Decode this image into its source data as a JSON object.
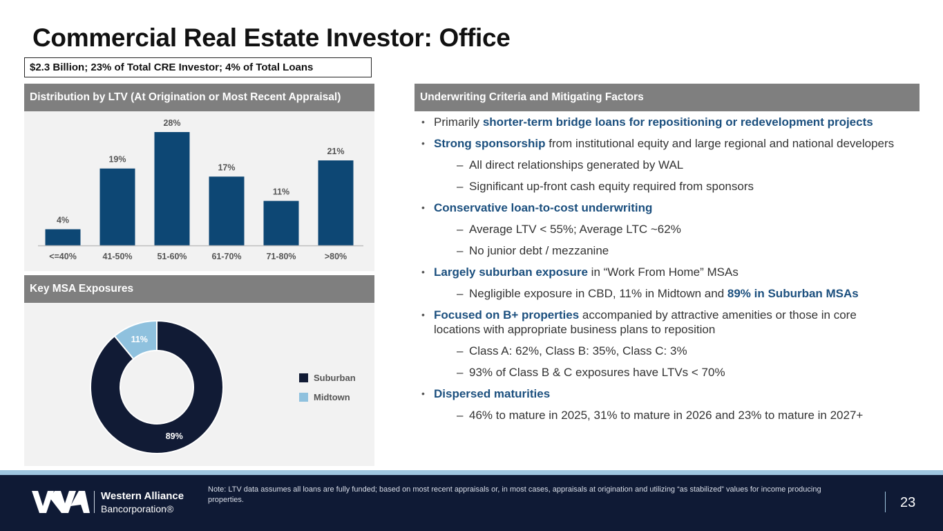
{
  "title": "Commercial Real Estate Investor: Office",
  "summary": "$2.3 Billion; 23% of Total CRE Investor; 4% of Total Loans",
  "ltv_panel": {
    "header": "Distribution by LTV (At Origination or Most Recent Appraisal)"
  },
  "msa_panel": {
    "header": "Key MSA Exposures"
  },
  "underwriting": {
    "header": "Underwriting Criteria and Mitigating Factors",
    "b1_pre": "Primarily ",
    "b1_hl": "shorter-term bridge loans for repositioning or redevelopment projects",
    "b2_hl": "Strong sponsorship",
    "b2_post": " from institutional equity and large regional and national developers",
    "b2_s1": "All direct relationships generated by WAL",
    "b2_s2": "Significant up-front cash equity required from sponsors",
    "b3_hl": "Conservative loan-to-cost underwriting",
    "b3_s1": "Average LTV < 55%; Average LTC ~62%",
    "b3_s2": "No junior debt / mezzanine",
    "b4_hl": "Largely suburban exposure",
    "b4_post": " in “Work From Home” MSAs",
    "b4_s1_pre": "Negligible exposure in CBD, 11% in Midtown and ",
    "b4_s1_hl": "89% in Suburban MSAs",
    "b5_hl": "Focused on B+ properties",
    "b5_post": " accompanied by attractive amenities or those in core locations with appropriate business plans to reposition",
    "b5_s1": "Class A: 62%, Class B: 35%, Class C: 3%",
    "b5_s2": "93% of Class B & C exposures have LTVs < 70%",
    "b6_hl": "Dispersed maturities",
    "b6_s1": "46% to mature in 2025, 31% to mature in 2026 and 23% to mature in 2027+"
  },
  "footer": {
    "brand_line1": "Western Alliance",
    "brand_line2": "Bancorporation®",
    "note": "Note: LTV data assumes all loans are fully funded; based on most recent appraisals or, in most cases, appraisals at origination and utilizing “as stabilized” values for income producing properties.",
    "page_number": "23"
  },
  "colors": {
    "bar": "#0d4774",
    "suburban": "#111b35",
    "midtown": "#8fc1de",
    "highlight": "#1b4f7e"
  },
  "chart_data": [
    {
      "type": "bar",
      "title": "Distribution by LTV (At Origination or Most Recent Appraisal)",
      "categories": [
        "<=40%",
        "41-50%",
        "51-60%",
        "61-70%",
        "71-80%",
        ">80%"
      ],
      "values": [
        4,
        19,
        28,
        17,
        11,
        21
      ],
      "labels": [
        "4%",
        "19%",
        "28%",
        "17%",
        "11%",
        "21%"
      ],
      "ylim": [
        0,
        30
      ],
      "grid": false
    },
    {
      "type": "pie",
      "title": "Key MSA Exposures",
      "series": [
        {
          "name": "Suburban",
          "value": 89,
          "label": "89%"
        },
        {
          "name": "Midtown",
          "value": 11,
          "label": "11%"
        }
      ],
      "legend": "right",
      "donut": true
    }
  ]
}
